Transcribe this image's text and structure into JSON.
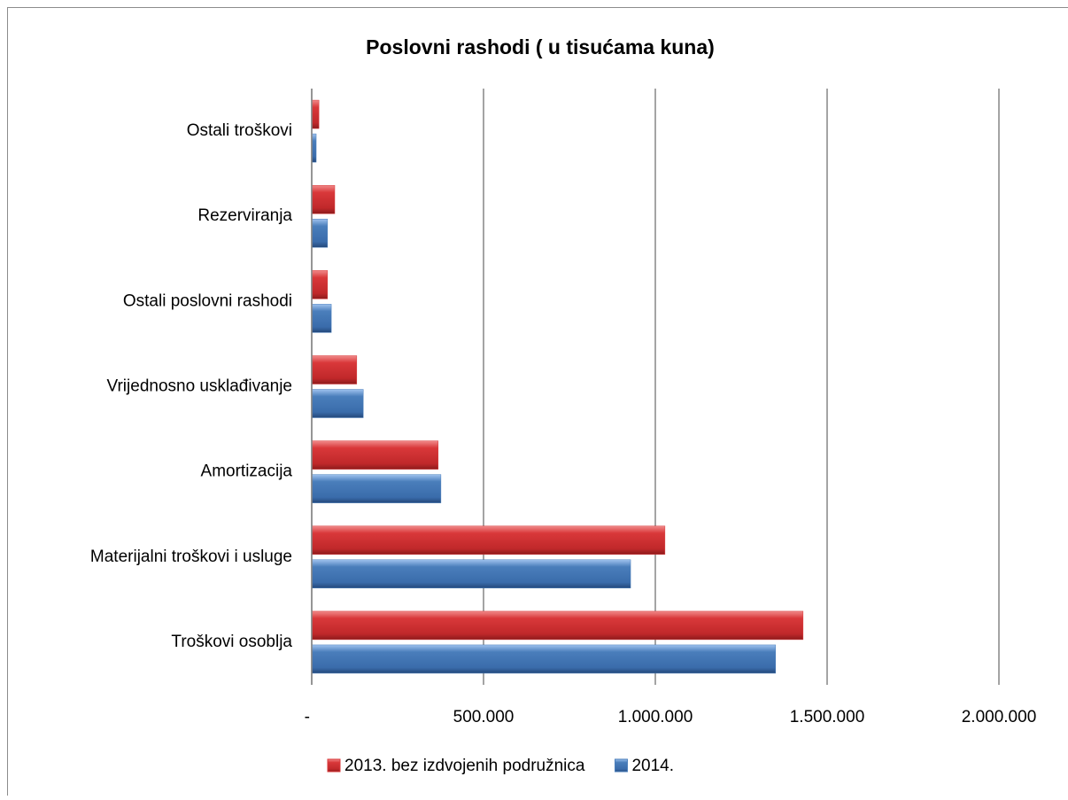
{
  "chart_data": {
    "type": "hbar",
    "title": "Poslovni rashodi ( u tisućama kuna)",
    "categories": [
      "Ostali troškovi",
      "Rezerviranja",
      "Ostali poslovni rashodi",
      "Vrijednosno usklađivanje",
      "Amortizacija",
      "Materijalni troškovi i usluge",
      "Troškovi osoblja"
    ],
    "series": [
      {
        "name": "2013. bez izdvojenih podružnica",
        "color": "#d9383a",
        "values": [
          21000,
          67000,
          46000,
          131000,
          368000,
          1028000,
          1430000
        ]
      },
      {
        "name": "2014.",
        "color": "#4a7ebb",
        "values": [
          13000,
          46000,
          57000,
          150000,
          376000,
          928000,
          1350000
        ]
      }
    ],
    "xlim": [
      0,
      2000000
    ],
    "xticks": [
      {
        "value": 0,
        "label": "-"
      },
      {
        "value": 500000,
        "label": "500.000"
      },
      {
        "value": 1000000,
        "label": "1.000.000"
      },
      {
        "value": 1500000,
        "label": "1.500.000"
      },
      {
        "value": 2000000,
        "label": "2.000.000"
      }
    ],
    "grid": true,
    "legend": "bottom"
  }
}
